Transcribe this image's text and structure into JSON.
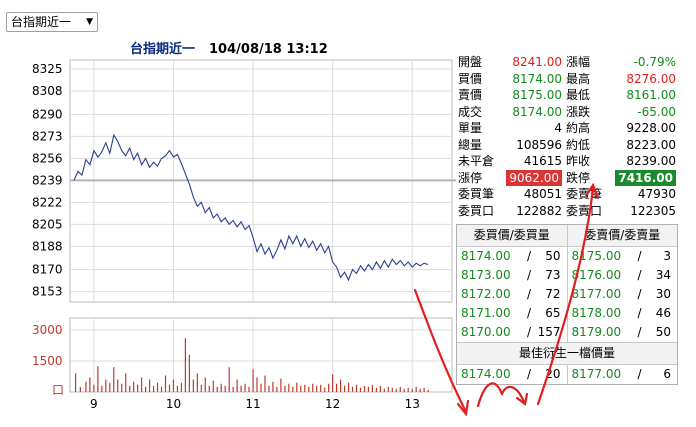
{
  "selector": {
    "value": "台指期近一"
  },
  "header": {
    "name": "台指期近一",
    "datetime": "104/08/18 13:12"
  },
  "quote": [
    {
      "l1": "開盤",
      "v1": "8241.00",
      "c1": "red",
      "l2": "漲幅",
      "v2": "-0.79%",
      "c2": "green"
    },
    {
      "l1": "買價",
      "v1": "8174.00",
      "c1": "green",
      "l2": "最高",
      "v2": "8276.00",
      "c2": "red"
    },
    {
      "l1": "賣價",
      "v1": "8175.00",
      "c1": "green",
      "l2": "最低",
      "v2": "8161.00",
      "c2": "green"
    },
    {
      "l1": "成交",
      "v1": "8174.00",
      "c1": "green",
      "l2": "漲跌",
      "v2": "-65.00",
      "c2": "green"
    },
    {
      "l1": "單量",
      "v1": "4",
      "c1": "black",
      "l2": "約高",
      "v2": "9228.00",
      "c2": "black"
    },
    {
      "l1": "總量",
      "v1": "108596",
      "c1": "black",
      "l2": "約低",
      "v2": "8223.00",
      "c2": "black"
    },
    {
      "l1": "未平倉",
      "v1": "41615",
      "c1": "black",
      "l2": "昨收",
      "v2": "8239.00",
      "c2": "black"
    },
    {
      "l1": "漲停",
      "v1": "9062.00",
      "c1": "limup",
      "l2": "跌停",
      "v2": "7416.00",
      "c2": "limdn"
    },
    {
      "l1": "委買筆",
      "v1": "48051",
      "c1": "black",
      "l2": "委賣筆",
      "v2": "47930",
      "c2": "black"
    },
    {
      "l1": "委買口",
      "v1": "122882",
      "c1": "black",
      "l2": "委賣口",
      "v2": "122305",
      "c2": "black"
    }
  ],
  "orderbook": {
    "bid_header": "委買價/委買量",
    "ask_header": "委賣價/委賣量",
    "bids": [
      {
        "price": "8174.00",
        "sep": "/",
        "qty": "50"
      },
      {
        "price": "8173.00",
        "sep": "/",
        "qty": "73"
      },
      {
        "price": "8172.00",
        "sep": "/",
        "qty": "72"
      },
      {
        "price": "8171.00",
        "sep": "/",
        "qty": "65"
      },
      {
        "price": "8170.00",
        "sep": "/",
        "qty": "157"
      }
    ],
    "asks": [
      {
        "price": "8175.00",
        "sep": "/",
        "qty": "3"
      },
      {
        "price": "8176.00",
        "sep": "/",
        "qty": "34"
      },
      {
        "price": "8177.00",
        "sep": "/",
        "qty": "30"
      },
      {
        "price": "8178.00",
        "sep": "/",
        "qty": "46"
      },
      {
        "price": "8179.00",
        "sep": "/",
        "qty": "50"
      }
    ],
    "best_label": "最佳衍生一檔價量",
    "best_bid": {
      "price": "8174.00",
      "sep": "/",
      "qty": "20"
    },
    "best_ask": {
      "price": "8177.00",
      "sep": "/",
      "qty": "6"
    }
  },
  "colors": {
    "line": "#2a3f8f",
    "volume": "#c0392b",
    "ref_line": "#b5b5b5",
    "grid": "#dcdcdc",
    "annotation": "#e02020"
  },
  "chart_data": {
    "type": "line",
    "price_ticks": [
      "8325",
      "8308",
      "8290",
      "8273",
      "8256",
      "8239",
      "8222",
      "8205",
      "8188",
      "8170",
      "8153"
    ],
    "ylim": [
      8145,
      8332
    ],
    "reference": 8239,
    "x_ticks": [
      "9",
      "10",
      "11",
      "12",
      "13"
    ],
    "volume_ticks": [
      "3000",
      "1500",
      "口"
    ],
    "volume_ylim": [
      0,
      3000
    ],
    "price_series": [
      [
        8.75,
        8239
      ],
      [
        8.8,
        8246
      ],
      [
        8.85,
        8243
      ],
      [
        8.9,
        8255
      ],
      [
        8.95,
        8251
      ],
      [
        9.0,
        8262
      ],
      [
        9.05,
        8257
      ],
      [
        9.1,
        8261
      ],
      [
        9.15,
        8268
      ],
      [
        9.2,
        8260
      ],
      [
        9.25,
        8274
      ],
      [
        9.3,
        8269
      ],
      [
        9.35,
        8262
      ],
      [
        9.4,
        8258
      ],
      [
        9.45,
        8264
      ],
      [
        9.5,
        8255
      ],
      [
        9.55,
        8260
      ],
      [
        9.6,
        8251
      ],
      [
        9.65,
        8256
      ],
      [
        9.7,
        8249
      ],
      [
        9.75,
        8253
      ],
      [
        9.8,
        8250
      ],
      [
        9.85,
        8256
      ],
      [
        9.9,
        8258
      ],
      [
        9.95,
        8262
      ],
      [
        10.0,
        8257
      ],
      [
        10.05,
        8259
      ],
      [
        10.1,
        8252
      ],
      [
        10.15,
        8244
      ],
      [
        10.2,
        8236
      ],
      [
        10.25,
        8226
      ],
      [
        10.3,
        8219
      ],
      [
        10.35,
        8222
      ],
      [
        10.4,
        8214
      ],
      [
        10.45,
        8218
      ],
      [
        10.5,
        8210
      ],
      [
        10.55,
        8213
      ],
      [
        10.6,
        8207
      ],
      [
        10.65,
        8210
      ],
      [
        10.7,
        8205
      ],
      [
        10.75,
        8208
      ],
      [
        10.8,
        8203
      ],
      [
        10.85,
        8207
      ],
      [
        10.9,
        8201
      ],
      [
        10.95,
        8204
      ],
      [
        11.0,
        8195
      ],
      [
        11.05,
        8184
      ],
      [
        11.1,
        8190
      ],
      [
        11.15,
        8182
      ],
      [
        11.2,
        8187
      ],
      [
        11.25,
        8179
      ],
      [
        11.3,
        8185
      ],
      [
        11.35,
        8193
      ],
      [
        11.4,
        8186
      ],
      [
        11.45,
        8196
      ],
      [
        11.5,
        8190
      ],
      [
        11.55,
        8196
      ],
      [
        11.6,
        8188
      ],
      [
        11.65,
        8194
      ],
      [
        11.7,
        8187
      ],
      [
        11.75,
        8192
      ],
      [
        11.8,
        8185
      ],
      [
        11.85,
        8190
      ],
      [
        11.9,
        8183
      ],
      [
        11.95,
        8188
      ],
      [
        12.0,
        8176
      ],
      [
        12.05,
        8172
      ],
      [
        12.1,
        8164
      ],
      [
        12.15,
        8168
      ],
      [
        12.2,
        8162
      ],
      [
        12.25,
        8170
      ],
      [
        12.3,
        8167
      ],
      [
        12.35,
        8173
      ],
      [
        12.4,
        8169
      ],
      [
        12.45,
        8174
      ],
      [
        12.5,
        8170
      ],
      [
        12.55,
        8176
      ],
      [
        12.6,
        8171
      ],
      [
        12.65,
        8177
      ],
      [
        12.7,
        8172
      ],
      [
        12.75,
        8178
      ],
      [
        12.8,
        8174
      ],
      [
        12.85,
        8177
      ],
      [
        12.9,
        8173
      ],
      [
        12.95,
        8176
      ],
      [
        13.0,
        8172
      ],
      [
        13.05,
        8175
      ],
      [
        13.1,
        8173
      ],
      [
        13.15,
        8175
      ],
      [
        13.2,
        8174
      ]
    ],
    "volume_series": [
      [
        8.77,
        900
      ],
      [
        8.83,
        250
      ],
      [
        8.9,
        500
      ],
      [
        8.95,
        700
      ],
      [
        9.0,
        350
      ],
      [
        9.05,
        1250
      ],
      [
        9.1,
        300
      ],
      [
        9.15,
        600
      ],
      [
        9.2,
        450
      ],
      [
        9.25,
        1200
      ],
      [
        9.3,
        600
      ],
      [
        9.35,
        400
      ],
      [
        9.4,
        900
      ],
      [
        9.45,
        300
      ],
      [
        9.5,
        500
      ],
      [
        9.55,
        350
      ],
      [
        9.6,
        700
      ],
      [
        9.65,
        250
      ],
      [
        9.7,
        600
      ],
      [
        9.75,
        300
      ],
      [
        9.8,
        450
      ],
      [
        9.85,
        250
      ],
      [
        9.9,
        800
      ],
      [
        9.95,
        350
      ],
      [
        10.0,
        600
      ],
      [
        10.05,
        300
      ],
      [
        10.1,
        450
      ],
      [
        10.15,
        2600
      ],
      [
        10.2,
        1800
      ],
      [
        10.25,
        600
      ],
      [
        10.3,
        900
      ],
      [
        10.35,
        350
      ],
      [
        10.4,
        700
      ],
      [
        10.45,
        300
      ],
      [
        10.5,
        550
      ],
      [
        10.55,
        250
      ],
      [
        10.6,
        400
      ],
      [
        10.65,
        300
      ],
      [
        10.7,
        1200
      ],
      [
        10.75,
        250
      ],
      [
        10.8,
        600
      ],
      [
        10.85,
        300
      ],
      [
        10.9,
        400
      ],
      [
        10.95,
        250
      ],
      [
        11.0,
        1100
      ],
      [
        11.05,
        700
      ],
      [
        11.1,
        400
      ],
      [
        11.15,
        800
      ],
      [
        11.2,
        300
      ],
      [
        11.25,
        500
      ],
      [
        11.3,
        250
      ],
      [
        11.35,
        650
      ],
      [
        11.4,
        300
      ],
      [
        11.45,
        400
      ],
      [
        11.5,
        250
      ],
      [
        11.55,
        450
      ],
      [
        11.6,
        300
      ],
      [
        11.65,
        350
      ],
      [
        11.7,
        250
      ],
      [
        11.75,
        400
      ],
      [
        11.8,
        300
      ],
      [
        11.85,
        350
      ],
      [
        11.9,
        200
      ],
      [
        11.95,
        400
      ],
      [
        12.0,
        850
      ],
      [
        12.05,
        400
      ],
      [
        12.1,
        600
      ],
      [
        12.15,
        300
      ],
      [
        12.2,
        450
      ],
      [
        12.25,
        250
      ],
      [
        12.3,
        350
      ],
      [
        12.35,
        200
      ],
      [
        12.4,
        300
      ],
      [
        12.45,
        250
      ],
      [
        12.5,
        350
      ],
      [
        12.55,
        200
      ],
      [
        12.6,
        300
      ],
      [
        12.65,
        150
      ],
      [
        12.7,
        250
      ],
      [
        12.75,
        200
      ],
      [
        12.8,
        150
      ],
      [
        12.85,
        250
      ],
      [
        12.9,
        150
      ],
      [
        12.95,
        200
      ],
      [
        13.0,
        150
      ],
      [
        13.05,
        250
      ],
      [
        13.1,
        150
      ],
      [
        13.15,
        200
      ],
      [
        13.2,
        100
      ]
    ]
  }
}
